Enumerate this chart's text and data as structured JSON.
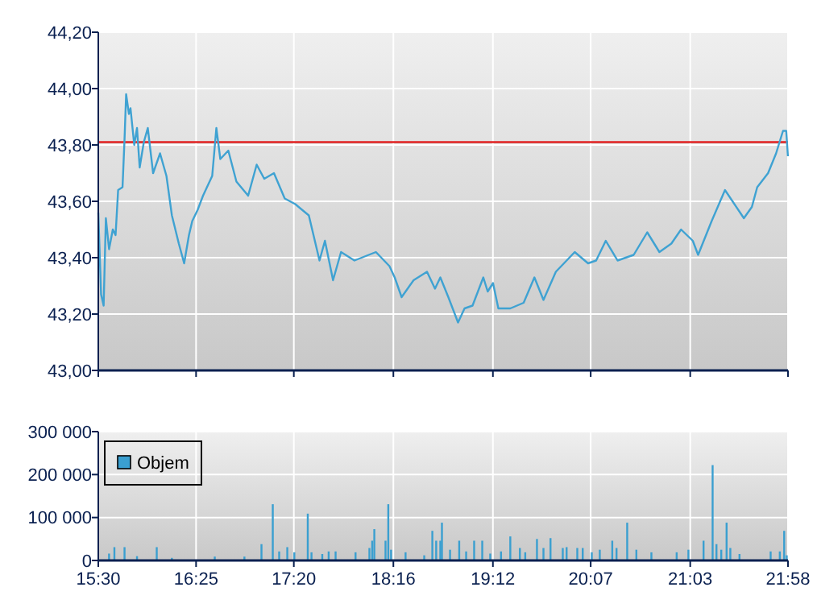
{
  "chart_data": [
    {
      "type": "line",
      "xlim": [
        15.5,
        21.9667
      ],
      "xticks": [
        {
          "value": 15.5,
          "label": null
        },
        {
          "value": 16.4167,
          "label": null
        },
        {
          "value": 17.3333,
          "label": null
        },
        {
          "value": 18.2667,
          "label": null
        },
        {
          "value": 19.2,
          "label": null
        },
        {
          "value": 20.1167,
          "label": null
        },
        {
          "value": 21.05,
          "label": null
        },
        {
          "value": 21.9667,
          "label": null
        }
      ],
      "ylim": [
        43,
        44.2
      ],
      "yticks": [
        {
          "value": 43,
          "label": "43,00"
        },
        {
          "value": 43.2,
          "label": "43,20"
        },
        {
          "value": 43.4,
          "label": "43,40"
        },
        {
          "value": 43.6,
          "label": "43,60"
        },
        {
          "value": 43.8,
          "label": "43,80"
        },
        {
          "value": 44,
          "label": "44,00"
        },
        {
          "value": 44.2,
          "label": "44,20"
        }
      ],
      "grid": true,
      "tick_labels": "y",
      "ref_lines": [
        {
          "axis": "y",
          "value": 43.81,
          "color": "#e02020"
        }
      ],
      "series": [
        {
          "color": "#3fa2d2",
          "x": [
            15.5,
            15.526,
            15.55,
            15.571,
            15.601,
            15.636,
            15.662,
            15.686,
            15.727,
            15.746,
            15.761,
            15.787,
            15.802,
            15.837,
            15.863,
            15.888,
            15.927,
            15.964,
            16.014,
            16.079,
            16.139,
            16.19,
            16.255,
            16.305,
            16.35,
            16.381,
            16.432,
            16.482,
            16.568,
            16.607,
            16.644,
            16.719,
            16.795,
            16.905,
            16.985,
            17.056,
            17.147,
            17.248,
            17.347,
            17.474,
            17.574,
            17.625,
            17.701,
            17.776,
            17.902,
            18.103,
            18.23,
            18.279,
            18.344,
            18.456,
            18.582,
            18.657,
            18.707,
            18.782,
            18.873,
            18.934,
            19.009,
            19.11,
            19.151,
            19.201,
            19.251,
            19.363,
            19.488,
            19.589,
            19.674,
            19.79,
            19.866,
            19.967,
            20.092,
            20.168,
            20.258,
            20.369,
            20.52,
            20.647,
            20.761,
            20.873,
            20.964,
            21.074,
            21.124,
            21.251,
            21.376,
            21.553,
            21.628,
            21.678,
            21.78,
            21.855,
            21.92,
            21.95,
            21.966
          ],
          "values": [
            43.56,
            43.27,
            43.23,
            43.54,
            43.43,
            43.5,
            43.48,
            43.64,
            43.65,
            43.82,
            43.98,
            43.91,
            43.93,
            43.8,
            43.86,
            43.72,
            43.81,
            43.86,
            43.7,
            43.77,
            43.69,
            43.55,
            43.45,
            43.38,
            43.48,
            43.53,
            43.57,
            43.62,
            43.69,
            43.86,
            43.75,
            43.78,
            43.67,
            43.62,
            43.73,
            43.68,
            43.7,
            43.61,
            43.59,
            43.55,
            43.39,
            43.46,
            43.32,
            43.42,
            43.39,
            43.42,
            43.37,
            43.33,
            43.26,
            43.32,
            43.35,
            43.29,
            43.33,
            43.26,
            43.17,
            43.22,
            43.23,
            43.33,
            43.28,
            43.31,
            43.22,
            43.22,
            43.24,
            43.33,
            43.25,
            43.35,
            43.38,
            43.42,
            43.38,
            43.39,
            43.46,
            43.39,
            43.41,
            43.49,
            43.42,
            43.45,
            43.5,
            43.46,
            43.41,
            43.53,
            43.64,
            43.54,
            43.58,
            43.65,
            43.7,
            43.77,
            43.85,
            43.85,
            43.76
          ]
        }
      ]
    },
    {
      "type": "bar",
      "xlim": [
        15.5,
        21.9667
      ],
      "xticks": [
        {
          "value": 15.5,
          "label": "15:30"
        },
        {
          "value": 16.4167,
          "label": "16:25"
        },
        {
          "value": 17.3333,
          "label": "17:20"
        },
        {
          "value": 18.2667,
          "label": "18:16"
        },
        {
          "value": 19.2,
          "label": "19:12"
        },
        {
          "value": 20.1167,
          "label": "20:07"
        },
        {
          "value": 21.05,
          "label": "21:03"
        },
        {
          "value": 21.9667,
          "label": "21:58"
        }
      ],
      "ylim": [
        0,
        300000
      ],
      "yticks": [
        {
          "value": 0,
          "label": "0"
        },
        {
          "value": 100000,
          "label": "100 000"
        },
        {
          "value": 200000,
          "label": "200 000"
        },
        {
          "value": 300000,
          "label": "300 000"
        }
      ],
      "grid": true,
      "legend": "top left",
      "series": [
        {
          "name": "Objem",
          "color": "#3a9fd0",
          "x": [
            15.601,
            15.651,
            15.746,
            15.863,
            16.048,
            16.19,
            16.592,
            16.87,
            17.03,
            17.136,
            17.196,
            17.272,
            17.338,
            17.464,
            17.499,
            17.6,
            17.66,
            17.725,
            17.912,
            18.042,
            18.068,
            18.088,
            18.193,
            18.219,
            18.245,
            18.381,
            18.556,
            18.632,
            18.668,
            18.707,
            18.722,
            18.798,
            18.884,
            18.949,
            19.024,
            19.1,
            19.175,
            19.276,
            19.363,
            19.453,
            19.503,
            19.613,
            19.674,
            19.74,
            19.855,
            19.891,
            19.991,
            20.042,
            20.127,
            20.202,
            20.319,
            20.359,
            20.459,
            20.545,
            20.686,
            20.923,
            21.033,
            21.175,
            21.26,
            21.296,
            21.341,
            21.391,
            21.426,
            21.512,
            21.804,
            21.89,
            21.931,
            21.955
          ],
          "values": [
            16000,
            31000,
            31000,
            10000,
            31000,
            6000,
            9000,
            9000,
            38000,
            131000,
            21000,
            31000,
            19000,
            109000,
            19000,
            15000,
            21000,
            21000,
            19000,
            29000,
            46000,
            73000,
            46000,
            131000,
            25000,
            19000,
            12000,
            69000,
            46000,
            46000,
            88000,
            25000,
            46000,
            21000,
            46000,
            46000,
            16000,
            21000,
            56000,
            29000,
            19000,
            50000,
            29000,
            52000,
            29000,
            31000,
            29000,
            29000,
            19000,
            25000,
            46000,
            29000,
            88000,
            25000,
            19000,
            19000,
            25000,
            46000,
            222000,
            38000,
            25000,
            88000,
            29000,
            15000,
            21000,
            21000,
            69000,
            12000
          ]
        }
      ]
    }
  ]
}
